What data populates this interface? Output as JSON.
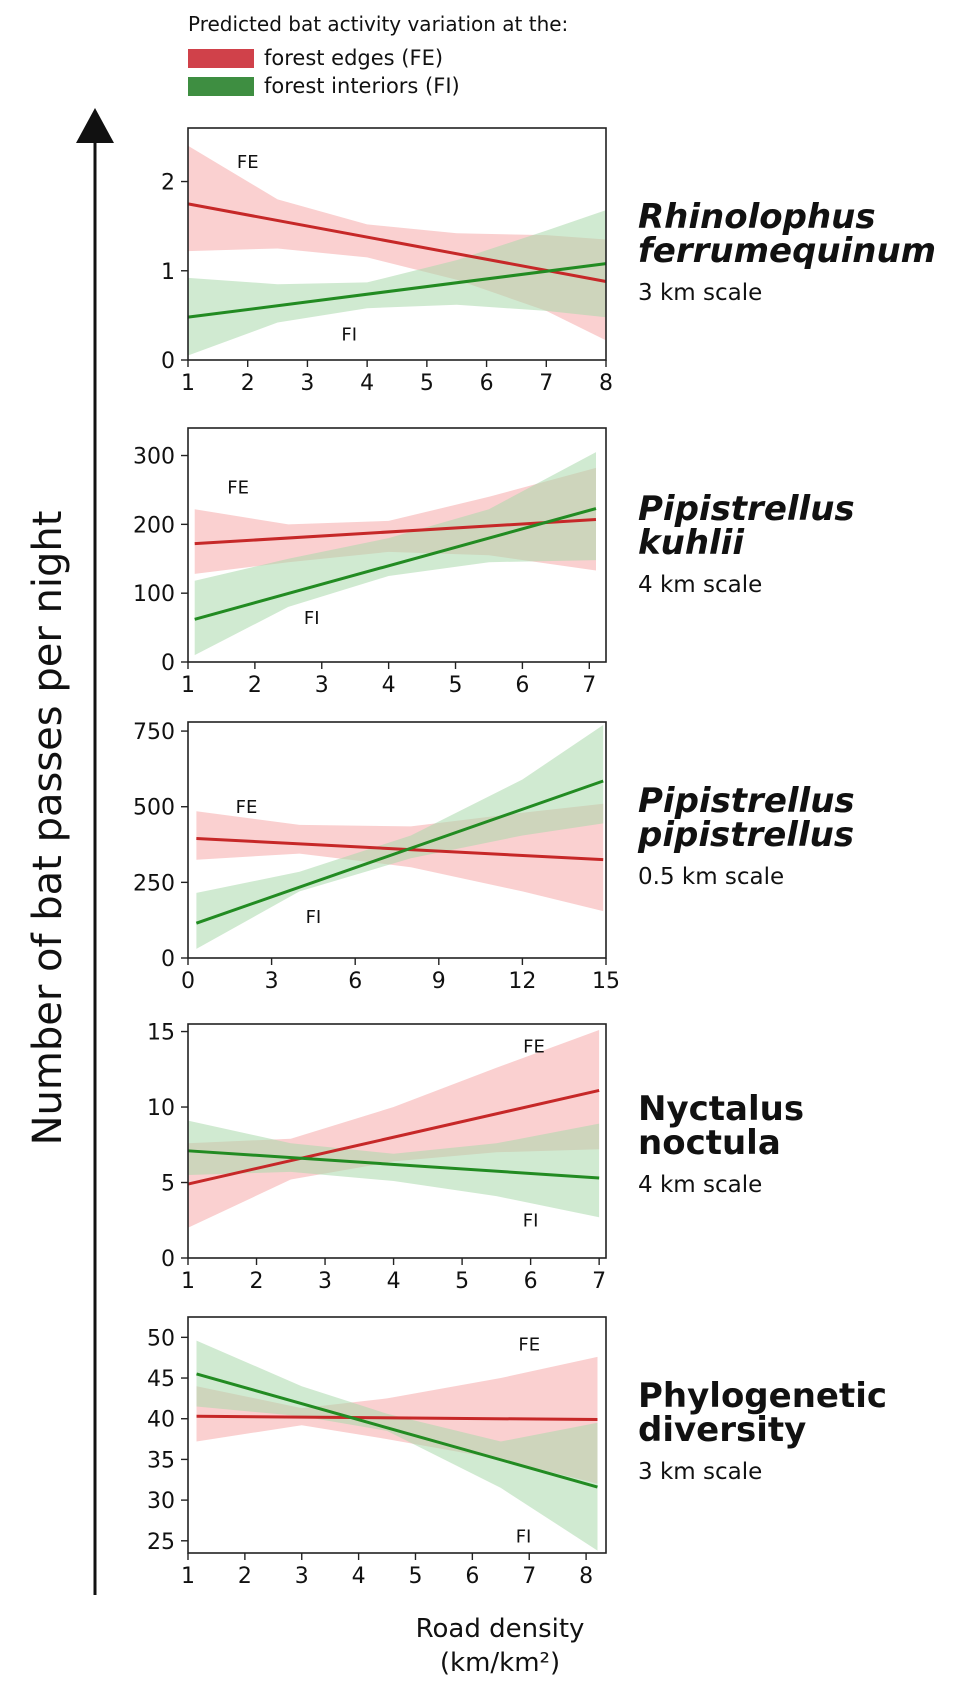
{
  "legend": {
    "title": "Predicted bat activity variation at the:",
    "items": [
      {
        "label": "forest edges (FE)",
        "color": "#d0414a"
      },
      {
        "label": "forest interiors (FI)",
        "color": "#3e8e41"
      }
    ]
  },
  "y_axis_label": "Number of bat passes per night",
  "x_axis_label": {
    "line1": "Road density",
    "line2": "(km/km²)"
  },
  "colors": {
    "fe_line": "#c62828",
    "fe_band": "#f5a9a9",
    "fi_line": "#228b22",
    "fi_band": "#a9d8ab"
  },
  "chart_data": [
    {
      "type": "line",
      "title": "Rhinolophus ferrumequinum",
      "title_line1": "Rhinolophus",
      "title_line2": "ferrumequinum",
      "italic": true,
      "subtitle": "3 km scale",
      "xlim": [
        1,
        8
      ],
      "ylim": [
        0,
        2.6
      ],
      "xticks": [
        1,
        2,
        3,
        4,
        5,
        6,
        7,
        8
      ],
      "yticks": [
        0,
        1,
        2
      ],
      "series": [
        {
          "name": "FE",
          "x": [
            1,
            8
          ],
          "y": [
            1.75,
            0.88
          ],
          "ci_x": [
            1,
            2.5,
            4,
            5.5,
            7,
            8
          ],
          "ci_lower": [
            1.22,
            1.25,
            1.15,
            0.9,
            0.55,
            0.22
          ],
          "ci_upper": [
            2.4,
            1.8,
            1.52,
            1.42,
            1.4,
            1.35
          ],
          "label_at": [
            2,
            2.15
          ]
        },
        {
          "name": "FI",
          "x": [
            1,
            8
          ],
          "y": [
            0.48,
            1.08
          ],
          "ci_x": [
            1,
            2.5,
            4,
            5.5,
            7,
            8
          ],
          "ci_lower": [
            0.05,
            0.42,
            0.58,
            0.62,
            0.55,
            0.48
          ],
          "ci_upper": [
            0.92,
            0.85,
            0.87,
            1.12,
            1.45,
            1.68
          ],
          "label_at": [
            3.7,
            0.22
          ]
        }
      ]
    },
    {
      "type": "line",
      "title": "Pipistrellus kuhlii",
      "title_line1": "Pipistrellus",
      "title_line2": "kuhlii",
      "italic": true,
      "subtitle": "4 km scale",
      "xlim": [
        1,
        7.25
      ],
      "ylim": [
        0,
        340
      ],
      "xticks": [
        1,
        2,
        3,
        4,
        5,
        6,
        7
      ],
      "yticks": [
        0,
        100,
        200,
        300
      ],
      "series": [
        {
          "name": "FE",
          "x": [
            1.1,
            7.1
          ],
          "y": [
            172,
            207
          ],
          "ci_x": [
            1.1,
            2.5,
            4,
            5.5,
            7.1
          ],
          "ci_lower": [
            128,
            145,
            160,
            155,
            133
          ],
          "ci_upper": [
            222,
            200,
            205,
            240,
            282
          ],
          "label_at": [
            1.75,
            245
          ]
        },
        {
          "name": "FI",
          "x": [
            1.1,
            7.1
          ],
          "y": [
            62,
            223
          ],
          "ci_x": [
            1.1,
            2.5,
            4,
            5.5,
            7.1
          ],
          "ci_lower": [
            10,
            80,
            125,
            145,
            148
          ],
          "ci_upper": [
            118,
            150,
            180,
            222,
            305
          ],
          "label_at": [
            2.85,
            55
          ]
        }
      ]
    },
    {
      "type": "line",
      "title": "Pipistrellus pipistrellus",
      "title_line1": "Pipistrellus",
      "title_line2": "pipistrellus",
      "italic": true,
      "subtitle": "0.5 km scale",
      "xlim": [
        0,
        15
      ],
      "ylim": [
        0,
        780
      ],
      "xticks": [
        0,
        3,
        6,
        9,
        12,
        15
      ],
      "yticks": [
        0,
        250,
        500,
        750
      ],
      "series": [
        {
          "name": "FE",
          "x": [
            0.3,
            14.9
          ],
          "y": [
            395,
            325
          ],
          "ci_x": [
            0.3,
            4,
            8,
            12,
            14.9
          ],
          "ci_lower": [
            325,
            345,
            300,
            220,
            155
          ],
          "ci_upper": [
            485,
            440,
            435,
            480,
            510
          ],
          "label_at": [
            2.1,
            480
          ]
        },
        {
          "name": "FI",
          "x": [
            0.3,
            14.9
          ],
          "y": [
            115,
            585
          ],
          "ci_x": [
            0.3,
            4,
            8,
            12,
            14.9
          ],
          "ci_lower": [
            30,
            220,
            330,
            405,
            445
          ],
          "ci_upper": [
            215,
            285,
            405,
            590,
            770
          ],
          "label_at": [
            4.5,
            115
          ]
        }
      ]
    },
    {
      "type": "line",
      "title": "Nyctalus noctula",
      "title_line1": "Nyctalus",
      "title_line2": "noctula",
      "italic": false,
      "subtitle": "4 km scale",
      "xlim": [
        1,
        7.1
      ],
      "ylim": [
        0,
        15.5
      ],
      "xticks": [
        1,
        2,
        3,
        4,
        5,
        6,
        7
      ],
      "yticks": [
        0,
        5,
        10,
        15
      ],
      "series": [
        {
          "name": "FE",
          "x": [
            1,
            7
          ],
          "y": [
            4.9,
            11.1
          ],
          "ci_x": [
            1,
            2.5,
            4,
            5.5,
            7
          ],
          "ci_lower": [
            2.0,
            5.2,
            6.4,
            7.0,
            7.2
          ],
          "ci_upper": [
            7.6,
            7.9,
            10.0,
            12.6,
            15.1
          ],
          "label_at": [
            6.05,
            13.6
          ]
        },
        {
          "name": "FI",
          "x": [
            1,
            7
          ],
          "y": [
            7.1,
            5.3
          ],
          "ci_x": [
            1,
            2.5,
            4,
            5.5,
            7
          ],
          "ci_lower": [
            5.5,
            5.7,
            5.1,
            4.1,
            2.7
          ],
          "ci_upper": [
            9.1,
            7.6,
            6.9,
            7.6,
            8.9
          ],
          "label_at": [
            6.0,
            2.1
          ]
        }
      ]
    },
    {
      "type": "line",
      "title": "Phylogenetic diversity",
      "title_line1": "Phylogenetic",
      "title_line2": "diversity",
      "italic": false,
      "subtitle": "3 km scale",
      "xlim": [
        1,
        8.35
      ],
      "ylim": [
        23.5,
        52.5
      ],
      "xticks": [
        1,
        2,
        3,
        4,
        5,
        6,
        7,
        8
      ],
      "yticks": [
        25,
        30,
        35,
        40,
        45,
        50
      ],
      "series": [
        {
          "name": "FE",
          "x": [
            1.15,
            8.2
          ],
          "y": [
            40.3,
            39.9
          ],
          "ci_x": [
            1.15,
            3,
            4.5,
            6.5,
            8.2
          ],
          "ci_lower": [
            37.2,
            39.2,
            37.5,
            35.0,
            32.0
          ],
          "ci_upper": [
            44.0,
            41.3,
            42.5,
            45.0,
            47.6
          ],
          "label_at": [
            7.0,
            48.4
          ]
        },
        {
          "name": "FI",
          "x": [
            1.15,
            8.2
          ],
          "y": [
            45.5,
            31.6
          ],
          "ci_x": [
            1.15,
            3,
            4.5,
            6.5,
            8.2
          ],
          "ci_lower": [
            41.5,
            40.3,
            38.5,
            31.5,
            23.8
          ],
          "ci_upper": [
            49.6,
            44.0,
            40.6,
            37.2,
            39.5
          ],
          "label_at": [
            6.9,
            24.8
          ]
        }
      ]
    }
  ]
}
